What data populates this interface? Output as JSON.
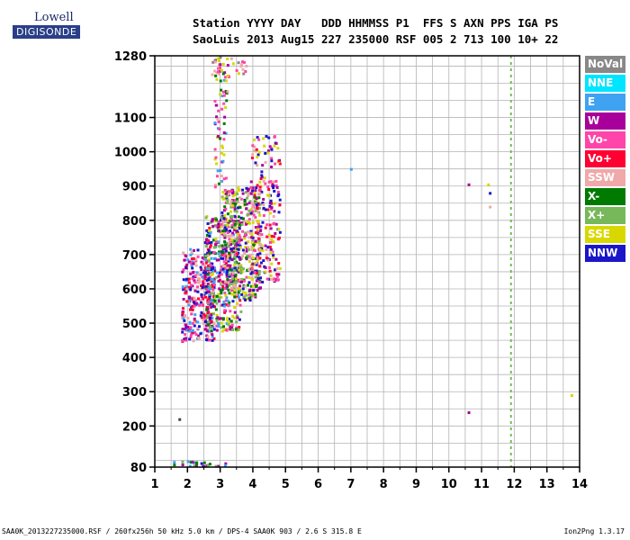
{
  "logo": {
    "line1": "Lowell",
    "line2": "DIGISONDE"
  },
  "header": {
    "line1": "Station YYYY DAY   DDD HHMMSS P1  FFS S AXN PPS IGA PS",
    "line2": "SaoLuis 2013 Aug15 227 235000 RSF 005 2 713 100 10+ 22"
  },
  "footer": {
    "left": "SAA0K_2013227235000.RSF / 260fx256h 50 kHz 5.0 km / DPS-4 SAA0K 903 / 2.6 S 315.8 E",
    "right": "Ion2Png 1.3.17"
  },
  "legend": [
    {
      "label": "NoVal",
      "color": "#888888"
    },
    {
      "label": "NNE",
      "color": "#00e5ff"
    },
    {
      "label": "E",
      "color": "#3fa3f2"
    },
    {
      "label": "W",
      "color": "#a8009a"
    },
    {
      "label": "Vo-",
      "color": "#ff44aa"
    },
    {
      "label": "Vo+",
      "color": "#ff0033"
    },
    {
      "label": "SSW",
      "color": "#f0a8a8"
    },
    {
      "label": "X-",
      "color": "#007a00"
    },
    {
      "label": "X+",
      "color": "#77b85a"
    },
    {
      "label": "SSE",
      "color": "#d8d800"
    },
    {
      "label": "NNW",
      "color": "#1a16c8"
    }
  ],
  "chart_data": {
    "type": "scatter",
    "title": "",
    "xlabel": "",
    "ylabel": "",
    "xlim": [
      1,
      14
    ],
    "ylim": [
      80,
      1280
    ],
    "xticks": [
      1,
      2,
      3,
      4,
      5,
      6,
      7,
      8,
      9,
      10,
      11,
      12,
      13,
      14
    ],
    "yticks": [
      80,
      200,
      300,
      400,
      500,
      600,
      700,
      800,
      900,
      1000,
      1100,
      1280
    ],
    "grid": true,
    "dashed_vertical_line": {
      "x": 11.9,
      "color": "#77b85a"
    },
    "clusters": [
      {
        "xmin": 1.8,
        "xmax": 2.8,
        "ymin": 450,
        "ymax": 720,
        "n": 320,
        "colors": [
          "#ff44aa",
          "#a8009a",
          "#ff0033",
          "#f0a8a8",
          "#3fa3f2",
          "#1a16c8"
        ]
      },
      {
        "xmin": 2.5,
        "xmax": 3.6,
        "ymin": 480,
        "ymax": 820,
        "n": 420,
        "colors": [
          "#007a00",
          "#a8009a",
          "#1a16c8",
          "#ff0033",
          "#ff44aa",
          "#d8d800",
          "#77b85a",
          "#3fa3f2"
        ]
      },
      {
        "xmin": 3.0,
        "xmax": 4.2,
        "ymin": 570,
        "ymax": 900,
        "n": 420,
        "colors": [
          "#d8d800",
          "#1a16c8",
          "#007a00",
          "#a8009a",
          "#ff44aa",
          "#77b85a",
          "#f0a8a8"
        ]
      },
      {
        "xmin": 3.9,
        "xmax": 4.8,
        "ymin": 620,
        "ymax": 1050,
        "n": 220,
        "colors": [
          "#d8d800",
          "#ff44aa",
          "#f0a8a8",
          "#a8009a",
          "#ff0033",
          "#1a16c8"
        ]
      },
      {
        "xmin": 2.8,
        "xmax": 3.2,
        "ymin": 900,
        "ymax": 1280,
        "n": 70,
        "colors": [
          "#007a00",
          "#d8d800",
          "#ff44aa",
          "#f0a8a8",
          "#a8009a",
          "#3fa3f2"
        ]
      },
      {
        "xmin": 2.7,
        "xmax": 3.8,
        "ymin": 1220,
        "ymax": 1280,
        "n": 30,
        "colors": [
          "#f0a8a8",
          "#d8d800",
          "#ff44aa",
          "#888888"
        ]
      },
      {
        "xmin": 1.5,
        "xmax": 3.2,
        "ymin": 85,
        "ymax": 100,
        "n": 25,
        "colors": [
          "#1a16c8",
          "#a8009a",
          "#3fa3f2",
          "#77b85a",
          "#007a00"
        ]
      }
    ],
    "points": [
      {
        "x": 1.75,
        "y": 220,
        "color": "#444444"
      },
      {
        "x": 7.0,
        "y": 950,
        "color": "#3fa3f2"
      },
      {
        "x": 10.6,
        "y": 905,
        "color": "#a8009a"
      },
      {
        "x": 11.25,
        "y": 880,
        "color": "#1a16c8"
      },
      {
        "x": 11.2,
        "y": 905,
        "color": "#d8d800"
      },
      {
        "x": 11.25,
        "y": 840,
        "color": "#f0a8a8"
      },
      {
        "x": 10.6,
        "y": 240,
        "color": "#a8009a"
      },
      {
        "x": 13.75,
        "y": 290,
        "color": "#d8d800"
      }
    ]
  }
}
